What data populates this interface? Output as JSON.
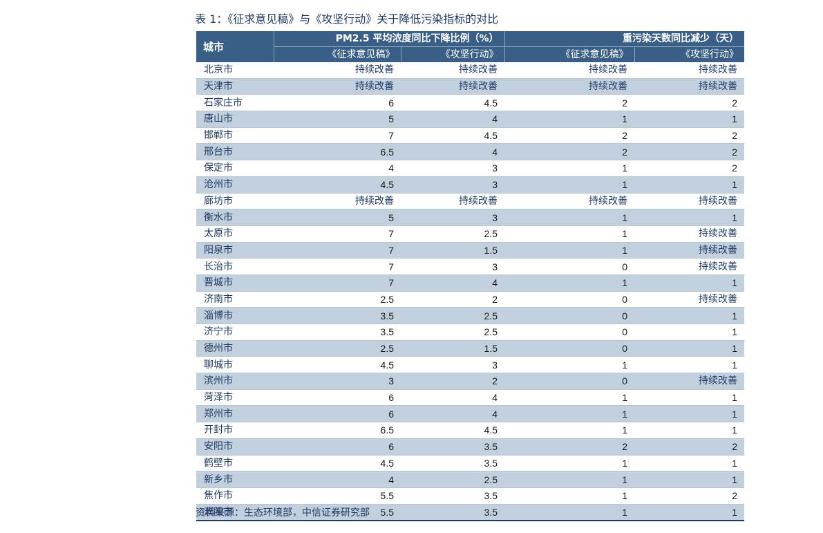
{
  "title": "表 1：《征求意见稿》与《攻坚行动》关于降低污染指标的对比",
  "header": {
    "city": "城市",
    "group_pm25": "PM2.5 平均浓度同比下降比例（%）",
    "group_days": "重污染天数同比减少（天）",
    "sub_draft": "《征求意见稿》",
    "sub_action": "《攻坚行动》"
  },
  "rows": [
    [
      "北京市",
      "持续改善",
      "持续改善",
      "持续改善",
      "持续改善"
    ],
    [
      "天津市",
      "持续改善",
      "持续改善",
      "持续改善",
      "持续改善"
    ],
    [
      "石家庄市",
      "6",
      "4.5",
      "2",
      "2"
    ],
    [
      "唐山市",
      "5",
      "4",
      "1",
      "1"
    ],
    [
      "邯郸市",
      "7",
      "4.5",
      "2",
      "2"
    ],
    [
      "邢台市",
      "6.5",
      "4",
      "2",
      "2"
    ],
    [
      "保定市",
      "4",
      "3",
      "1",
      "2"
    ],
    [
      "沧州市",
      "4.5",
      "3",
      "1",
      "1"
    ],
    [
      "廊坊市",
      "持续改善",
      "持续改善",
      "持续改善",
      "持续改善"
    ],
    [
      "衡水市",
      "5",
      "3",
      "1",
      "1"
    ],
    [
      "太原市",
      "7",
      "2.5",
      "1",
      "持续改善"
    ],
    [
      "阳泉市",
      "7",
      "1.5",
      "1",
      "持续改善"
    ],
    [
      "长治市",
      "7",
      "3",
      "0",
      "持续改善"
    ],
    [
      "晋城市",
      "7",
      "4",
      "1",
      "1"
    ],
    [
      "济南市",
      "2.5",
      "2",
      "0",
      "持续改善"
    ],
    [
      "淄博市",
      "3.5",
      "2.5",
      "0",
      "1"
    ],
    [
      "济宁市",
      "3.5",
      "2.5",
      "0",
      "1"
    ],
    [
      "德州市",
      "2.5",
      "1.5",
      "0",
      "1"
    ],
    [
      "聊城市",
      "4.5",
      "3",
      "1",
      "1"
    ],
    [
      "滨州市",
      "3",
      "2",
      "0",
      "持续改善"
    ],
    [
      "菏泽市",
      "6",
      "4",
      "1",
      "1"
    ],
    [
      "郑州市",
      "6",
      "4",
      "1",
      "1"
    ],
    [
      "开封市",
      "6.5",
      "4.5",
      "1",
      "1"
    ],
    [
      "安阳市",
      "6",
      "3.5",
      "2",
      "2"
    ],
    [
      "鹤壁市",
      "4.5",
      "3.5",
      "1",
      "1"
    ],
    [
      "新乡市",
      "4",
      "2.5",
      "1",
      "1"
    ],
    [
      "焦作市",
      "5.5",
      "3.5",
      "1",
      "2"
    ],
    [
      "濮阳市",
      "5.5",
      "3.5",
      "1",
      "1"
    ]
  ],
  "source": "资料来源：生态环境部，中信证券研究部"
}
